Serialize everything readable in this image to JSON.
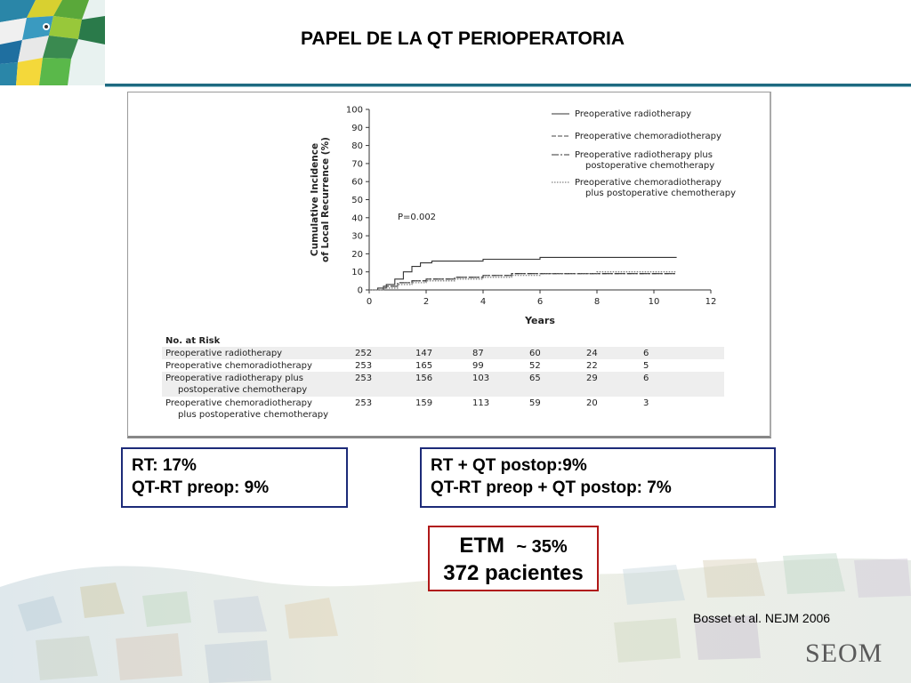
{
  "slide": {
    "title": "PAPEL DE LA QT PERIOPERATORIA",
    "citation": "Bosset et al. NEJM 2006",
    "brand": "SEOM"
  },
  "boxes": {
    "left": [
      "RT: 17%",
      "QT-RT preop: 9%"
    ],
    "right": [
      "RT + QT postop:9%",
      "QT-RT preop + QT postop: 7%"
    ],
    "etm": {
      "line1": "ETM",
      "tilde": "~ 35%",
      "line2": "372 pacientes"
    }
  },
  "colors": {
    "box_border": "#1c2a78",
    "etm_border": "#b01818",
    "header_bar": "#1e6a80"
  },
  "chart_data": {
    "type": "line",
    "xlabel": "Years",
    "ylabel": [
      "Cumulative Incidence",
      "of Local Recurrence (%)"
    ],
    "xlim": [
      0,
      12
    ],
    "ylim": [
      0,
      100
    ],
    "xticks": [
      0,
      2,
      4,
      6,
      8,
      10,
      12
    ],
    "yticks": [
      0,
      10,
      20,
      30,
      40,
      50,
      60,
      70,
      80,
      90,
      100
    ],
    "annotation": "P=0.002",
    "legend_position": "top-right",
    "series": [
      {
        "name": "Preoperative radiotherapy",
        "dash": "solid",
        "color": "#333333",
        "x": [
          0,
          0.3,
          0.6,
          0.9,
          1.2,
          1.5,
          1.8,
          2.2,
          3,
          4,
          5,
          6,
          8,
          10,
          10.8
        ],
        "y": [
          0,
          1,
          3,
          6,
          10,
          13,
          15,
          16,
          16,
          17,
          17,
          18,
          18,
          18,
          18
        ]
      },
      {
        "name": "Preoperative chemoradiotherapy",
        "dash": "5,2",
        "color": "#444444",
        "x": [
          0,
          0.5,
          1,
          1.5,
          2,
          3,
          4,
          5,
          6,
          8,
          10,
          10.8
        ],
        "y": [
          0,
          2,
          4,
          5,
          6,
          7,
          8,
          9,
          9,
          9,
          9,
          9
        ]
      },
      {
        "name": "Preoperative radiotherapy plus postoperative chemotherapy",
        "dash": "8,2,2,2",
        "color": "#333333",
        "x": [
          0,
          0.5,
          1,
          1.5,
          2,
          3,
          4,
          5,
          6,
          8,
          10,
          10.8
        ],
        "y": [
          0,
          2,
          4,
          5,
          6,
          7,
          8,
          9,
          9,
          9,
          9,
          9
        ]
      },
      {
        "name": "Preoperative chemoradiotherapy plus postoperative chemotherapy",
        "dash": "1.5,1.5",
        "color": "#666666",
        "x": [
          0,
          0.5,
          1,
          1.5,
          2,
          3,
          4,
          5,
          6,
          8,
          10,
          10.8
        ],
        "y": [
          0,
          1,
          3,
          4,
          5,
          6,
          7,
          8,
          9,
          10,
          10,
          10
        ]
      }
    ],
    "risk_table": {
      "header": "No. at Risk",
      "rows": [
        {
          "label": [
            "Preoperative radiotherapy"
          ],
          "values": [
            "252",
            "147",
            "87",
            "60",
            "24",
            "6"
          ]
        },
        {
          "label": [
            "Preoperative chemoradiotherapy"
          ],
          "values": [
            "253",
            "165",
            "99",
            "52",
            "22",
            "5"
          ]
        },
        {
          "label": [
            "Preoperative radiotherapy plus",
            "postoperative chemotherapy"
          ],
          "values": [
            "253",
            "156",
            "103",
            "65",
            "29",
            "6"
          ]
        },
        {
          "label": [
            "Preoperative chemoradiotherapy",
            "plus postoperative chemotherapy"
          ],
          "values": [
            "253",
            "159",
            "113",
            "59",
            "20",
            "3"
          ]
        }
      ]
    }
  }
}
